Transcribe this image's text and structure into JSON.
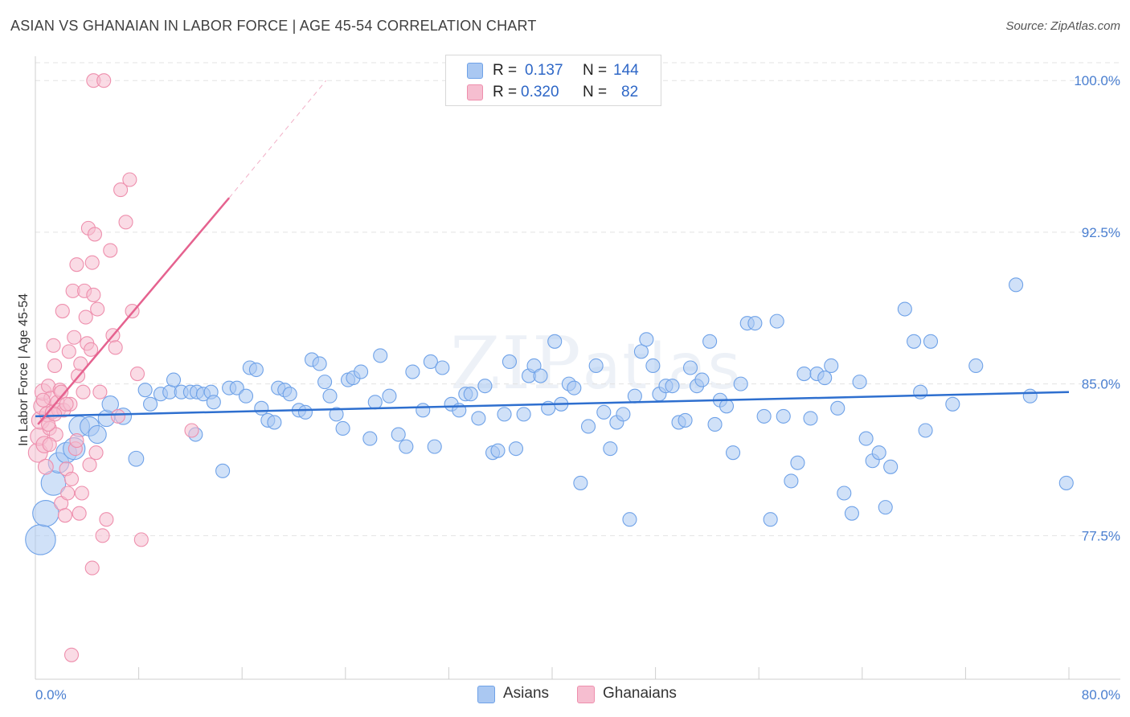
{
  "title": "ASIAN VS GHANAIAN IN LABOR FORCE | AGE 45-54 CORRELATION CHART",
  "source": "Source: ZipAtlas.com",
  "watermark": {
    "zip": "ZIP",
    "atlas": "atlas"
  },
  "colors": {
    "asian": "#6fa2e8",
    "asian_fill": "#aac8f2",
    "asian_line": "#2e6fcf",
    "ghana": "#ee8fad",
    "ghana_fill": "#f6bed0",
    "ghana_line": "#e5628f",
    "tick_text": "#4a7fd0",
    "grid": "#e3e3e3"
  },
  "legend": {
    "rows": [
      {
        "r_label": "R =",
        "r_value": "0.137",
        "n_label": "N =",
        "n_value": "144"
      },
      {
        "r_label": "R =",
        "r_value": "0.320",
        "n_label": "N =",
        "n_value": "82"
      }
    ]
  },
  "bottom_legend": [
    {
      "label": "Asians"
    },
    {
      "label": "Ghanaians"
    }
  ],
  "chart_data": {
    "type": "scatter",
    "title": "ASIAN VS GHANAIAN IN LABOR FORCE | AGE 45-54 CORRELATION CHART",
    "xlabel": "",
    "ylabel": "In Labor Force | Age 45-54",
    "xlim": [
      0,
      80
    ],
    "ylim": [
      70.4,
      101.2
    ],
    "x_tick_labels": [
      "0.0%",
      "80.0%"
    ],
    "y_ticks": [
      100.0,
      92.5,
      85.0,
      77.5
    ],
    "y_tick_labels": [
      "100.0%",
      "92.5%",
      "85.0%",
      "77.5%"
    ],
    "grid": true,
    "series": [
      {
        "name": "Asians",
        "r": 0.137,
        "n": 144,
        "trend": {
          "x": [
            0,
            80
          ],
          "y": [
            83.4,
            84.6
          ]
        },
        "points": [
          [
            0.4,
            77.3,
            2.2
          ],
          [
            0.8,
            78.6,
            1.9
          ],
          [
            1.4,
            80.1,
            1.8
          ],
          [
            1.8,
            81.1,
            1.5
          ],
          [
            2.4,
            81.6,
            1.5
          ],
          [
            3.0,
            81.8,
            1.6
          ],
          [
            3.4,
            82.9,
            1.5
          ],
          [
            4.2,
            82.9,
            1.4
          ],
          [
            4.8,
            82.5,
            1.3
          ],
          [
            5.5,
            83.3,
            1.2
          ],
          [
            5.8,
            84.0,
            1.2
          ],
          [
            6.8,
            83.4,
            1.2
          ],
          [
            7.8,
            81.3,
            1.1
          ],
          [
            8.5,
            84.7,
            1.0
          ],
          [
            8.9,
            84.0,
            1.0
          ],
          [
            9.7,
            84.5,
            1.0
          ],
          [
            10.4,
            84.6,
            1.0
          ],
          [
            10.7,
            85.2,
            1.0
          ],
          [
            11.3,
            84.6,
            1.0
          ],
          [
            12.0,
            84.6,
            1.0
          ],
          [
            12.4,
            82.5,
            1.0
          ],
          [
            12.5,
            84.6,
            1.0
          ],
          [
            13.0,
            84.5,
            1.0
          ],
          [
            13.6,
            84.6,
            1.0
          ],
          [
            13.8,
            84.1,
            1.0
          ],
          [
            14.5,
            80.7,
            1.0
          ],
          [
            15.0,
            84.8,
            1.0
          ],
          [
            15.6,
            84.8,
            1.0
          ],
          [
            16.3,
            84.4,
            1.0
          ],
          [
            16.6,
            85.8,
            1.0
          ],
          [
            17.1,
            85.7,
            1.0
          ],
          [
            17.5,
            83.8,
            1.0
          ],
          [
            18.0,
            83.2,
            1.0
          ],
          [
            18.5,
            83.1,
            1.0
          ],
          [
            18.8,
            84.8,
            1.0
          ],
          [
            19.3,
            84.7,
            1.0
          ],
          [
            19.7,
            84.5,
            1.0
          ],
          [
            20.4,
            83.7,
            1.0
          ],
          [
            20.9,
            83.6,
            1.0
          ],
          [
            21.4,
            86.2,
            1.0
          ],
          [
            22.0,
            86.0,
            1.0
          ],
          [
            22.4,
            85.1,
            1.0
          ],
          [
            22.8,
            84.4,
            1.0
          ],
          [
            23.3,
            83.5,
            1.0
          ],
          [
            23.8,
            82.8,
            1.0
          ],
          [
            24.2,
            85.2,
            1.0
          ],
          [
            24.6,
            85.3,
            1.0
          ],
          [
            25.2,
            85.6,
            1.0
          ],
          [
            25.9,
            82.3,
            1.0
          ],
          [
            26.3,
            84.1,
            1.0
          ],
          [
            26.7,
            86.4,
            1.0
          ],
          [
            27.4,
            84.4,
            1.0
          ],
          [
            28.1,
            82.5,
            1.0
          ],
          [
            28.7,
            81.9,
            1.0
          ],
          [
            29.2,
            85.6,
            1.0
          ],
          [
            30.0,
            83.7,
            1.0
          ],
          [
            30.6,
            86.1,
            1.0
          ],
          [
            30.9,
            81.9,
            1.0
          ],
          [
            31.5,
            85.8,
            1.0
          ],
          [
            32.2,
            84.0,
            1.0
          ],
          [
            32.8,
            83.7,
            1.0
          ],
          [
            33.3,
            84.5,
            1.0
          ],
          [
            33.7,
            84.5,
            1.0
          ],
          [
            34.3,
            83.3,
            1.0
          ],
          [
            34.8,
            84.9,
            1.0
          ],
          [
            35.4,
            81.6,
            1.0
          ],
          [
            35.8,
            81.7,
            1.0
          ],
          [
            36.3,
            83.5,
            1.0
          ],
          [
            36.7,
            86.1,
            1.0
          ],
          [
            37.2,
            81.8,
            1.0
          ],
          [
            37.8,
            83.5,
            1.0
          ],
          [
            38.2,
            85.4,
            1.0
          ],
          [
            38.6,
            85.9,
            1.0
          ],
          [
            39.1,
            85.4,
            1.0
          ],
          [
            39.7,
            83.8,
            1.0
          ],
          [
            40.2,
            87.1,
            1.0
          ],
          [
            40.7,
            84.0,
            1.0
          ],
          [
            41.3,
            85.0,
            1.0
          ],
          [
            41.7,
            84.8,
            1.0
          ],
          [
            42.2,
            80.1,
            1.0
          ],
          [
            42.8,
            82.9,
            1.0
          ],
          [
            43.4,
            85.9,
            1.0
          ],
          [
            44.0,
            83.6,
            1.0
          ],
          [
            44.5,
            81.8,
            1.0
          ],
          [
            45.0,
            83.1,
            1.0
          ],
          [
            45.5,
            83.5,
            1.0
          ],
          [
            46.0,
            78.3,
            1.0
          ],
          [
            46.4,
            84.4,
            1.0
          ],
          [
            46.9,
            86.6,
            1.0
          ],
          [
            47.3,
            87.2,
            1.0
          ],
          [
            47.8,
            85.9,
            1.0
          ],
          [
            48.3,
            84.5,
            1.0
          ],
          [
            48.8,
            84.9,
            1.0
          ],
          [
            49.3,
            84.9,
            1.0
          ],
          [
            49.8,
            83.1,
            1.0
          ],
          [
            50.3,
            83.2,
            1.0
          ],
          [
            50.7,
            85.8,
            1.0
          ],
          [
            51.2,
            84.9,
            1.0
          ],
          [
            51.6,
            85.2,
            1.0
          ],
          [
            52.2,
            87.1,
            1.0
          ],
          [
            52.6,
            83.0,
            1.0
          ],
          [
            53.0,
            84.2,
            1.0
          ],
          [
            53.5,
            83.9,
            1.0
          ],
          [
            54.0,
            81.6,
            1.0
          ],
          [
            54.6,
            85.0,
            1.0
          ],
          [
            55.1,
            88.0,
            1.0
          ],
          [
            55.7,
            88.0,
            1.0
          ],
          [
            56.4,
            83.4,
            1.0
          ],
          [
            56.9,
            78.3,
            1.0
          ],
          [
            57.4,
            88.1,
            1.0
          ],
          [
            57.9,
            83.4,
            1.0
          ],
          [
            58.5,
            80.2,
            1.0
          ],
          [
            59.0,
            81.1,
            1.0
          ],
          [
            59.5,
            85.5,
            1.0
          ],
          [
            60.0,
            83.3,
            1.0
          ],
          [
            60.5,
            85.5,
            1.0
          ],
          [
            61.1,
            85.3,
            1.0
          ],
          [
            61.6,
            85.9,
            1.0
          ],
          [
            62.1,
            83.8,
            1.0
          ],
          [
            62.6,
            79.6,
            1.0
          ],
          [
            63.2,
            78.6,
            1.0
          ],
          [
            63.8,
            85.1,
            1.0
          ],
          [
            64.3,
            82.3,
            1.0
          ],
          [
            64.8,
            81.2,
            1.0
          ],
          [
            65.3,
            81.6,
            1.0
          ],
          [
            65.8,
            78.9,
            1.0
          ],
          [
            66.2,
            80.9,
            1.0
          ],
          [
            67.3,
            88.7,
            1.0
          ],
          [
            68.0,
            87.1,
            1.0
          ],
          [
            68.5,
            84.6,
            1.0
          ],
          [
            68.9,
            82.7,
            1.0
          ],
          [
            69.3,
            87.1,
            1.0
          ],
          [
            71.0,
            84.0,
            1.0
          ],
          [
            72.8,
            85.9,
            1.0
          ],
          [
            75.9,
            89.9,
            1.0
          ],
          [
            77.0,
            84.4,
            1.0
          ],
          [
            79.8,
            80.1,
            1.0
          ]
        ]
      },
      {
        "name": "Ghanaians",
        "r": 0.32,
        "n": 82,
        "trend": {
          "x": [
            0.2,
            15.0
          ],
          "y": [
            83.0,
            94.2
          ]
        },
        "trend_dashed": {
          "x": [
            15.0,
            22.5
          ],
          "y": [
            94.2,
            100.0
          ]
        },
        "points": [
          [
            0.2,
            81.6,
            1.4
          ],
          [
            0.3,
            82.4,
            1.3
          ],
          [
            0.4,
            83.2,
            1.3
          ],
          [
            0.5,
            83.9,
            1.2
          ],
          [
            0.6,
            84.6,
            1.2
          ],
          [
            0.7,
            82.0,
            1.2
          ],
          [
            0.8,
            80.9,
            1.1
          ],
          [
            0.9,
            83.5,
            1.1
          ],
          [
            1.0,
            84.9,
            1.0
          ],
          [
            1.1,
            82.8,
            1.0
          ],
          [
            1.2,
            84.3,
            1.0
          ],
          [
            1.3,
            83.6,
            1.0
          ],
          [
            1.4,
            86.9,
            1.0
          ],
          [
            1.5,
            85.9,
            1.0
          ],
          [
            1.6,
            82.5,
            1.0
          ],
          [
            1.7,
            84.1,
            1.0
          ],
          [
            1.8,
            83.7,
            1.0
          ],
          [
            1.9,
            84.7,
            1.0
          ],
          [
            2.0,
            79.1,
            1.0
          ],
          [
            2.1,
            88.6,
            1.0
          ],
          [
            2.2,
            83.7,
            1.0
          ],
          [
            2.3,
            78.5,
            1.0
          ],
          [
            2.4,
            80.8,
            1.0
          ],
          [
            2.5,
            79.6,
            1.0
          ],
          [
            2.6,
            86.6,
            1.0
          ],
          [
            2.7,
            84.0,
            1.0
          ],
          [
            2.8,
            80.3,
            1.0
          ],
          [
            2.9,
            89.6,
            1.0
          ],
          [
            3.0,
            87.3,
            1.0
          ],
          [
            3.1,
            81.8,
            1.0
          ],
          [
            3.2,
            90.9,
            1.0
          ],
          [
            3.3,
            85.4,
            1.0
          ],
          [
            3.4,
            78.6,
            1.0
          ],
          [
            3.5,
            86.0,
            1.0
          ],
          [
            3.6,
            79.6,
            1.0
          ],
          [
            3.7,
            84.6,
            1.0
          ],
          [
            3.8,
            89.6,
            1.0
          ],
          [
            3.9,
            88.3,
            1.0
          ],
          [
            4.0,
            87.0,
            1.0
          ],
          [
            4.1,
            92.7,
            1.0
          ],
          [
            4.2,
            81.0,
            1.0
          ],
          [
            4.3,
            86.7,
            1.0
          ],
          [
            4.4,
            91.0,
            1.0
          ],
          [
            4.5,
            89.4,
            1.0
          ],
          [
            4.6,
            92.4,
            1.0
          ],
          [
            4.7,
            81.6,
            1.0
          ],
          [
            4.8,
            88.7,
            1.0
          ],
          [
            5.0,
            84.6,
            1.0
          ],
          [
            5.2,
            77.5,
            1.0
          ],
          [
            5.5,
            78.3,
            1.0
          ],
          [
            5.8,
            91.6,
            1.0
          ],
          [
            6.0,
            87.4,
            1.0
          ],
          [
            6.2,
            86.8,
            1.0
          ],
          [
            6.6,
            94.6,
            1.0
          ],
          [
            7.0,
            93.0,
            1.0
          ],
          [
            7.3,
            95.1,
            1.0
          ],
          [
            7.5,
            88.6,
            1.0
          ],
          [
            7.9,
            85.5,
            1.0
          ],
          [
            8.2,
            77.3,
            1.0
          ],
          [
            4.4,
            75.9,
            1.0
          ],
          [
            2.8,
            71.6,
            1.0
          ],
          [
            4.5,
            100.0,
            1.0
          ],
          [
            5.3,
            100.0,
            1.0
          ],
          [
            1.0,
            83.0,
            1.0
          ],
          [
            0.6,
            84.2,
            1.0
          ],
          [
            1.5,
            83.5,
            1.0
          ],
          [
            2.0,
            84.6,
            1.0
          ],
          [
            2.4,
            84.0,
            1.0
          ],
          [
            1.1,
            82.0,
            1.0
          ],
          [
            3.2,
            82.2,
            1.0
          ],
          [
            6.4,
            83.4,
            1.0
          ],
          [
            12.1,
            82.7,
            1.0
          ]
        ]
      }
    ]
  }
}
